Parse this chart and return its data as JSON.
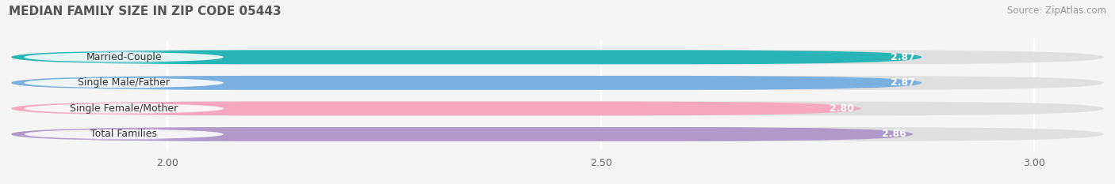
{
  "title": "MEDIAN FAMILY SIZE IN ZIP CODE 05443",
  "source": "Source: ZipAtlas.com",
  "categories": [
    "Married-Couple",
    "Single Male/Father",
    "Single Female/Mother",
    "Total Families"
  ],
  "values": [
    2.87,
    2.87,
    2.8,
    2.86
  ],
  "bar_colors": [
    "#29b5b5",
    "#7ab0e0",
    "#f5a8c0",
    "#b09aca"
  ],
  "bar_label_color": "#ffffff",
  "xmin": 1.82,
  "xlim": [
    1.82,
    3.08
  ],
  "xticks": [
    2.0,
    2.5,
    3.0
  ],
  "xtick_labels": [
    "2.00",
    "2.50",
    "3.00"
  ],
  "background_color": "#f5f5f5",
  "bar_background_color": "#e0e0e0",
  "title_fontsize": 11,
  "source_fontsize": 8.5,
  "label_fontsize": 9,
  "value_fontsize": 9,
  "tick_fontsize": 9,
  "bar_height": 0.55,
  "bar_gap": 0.45
}
